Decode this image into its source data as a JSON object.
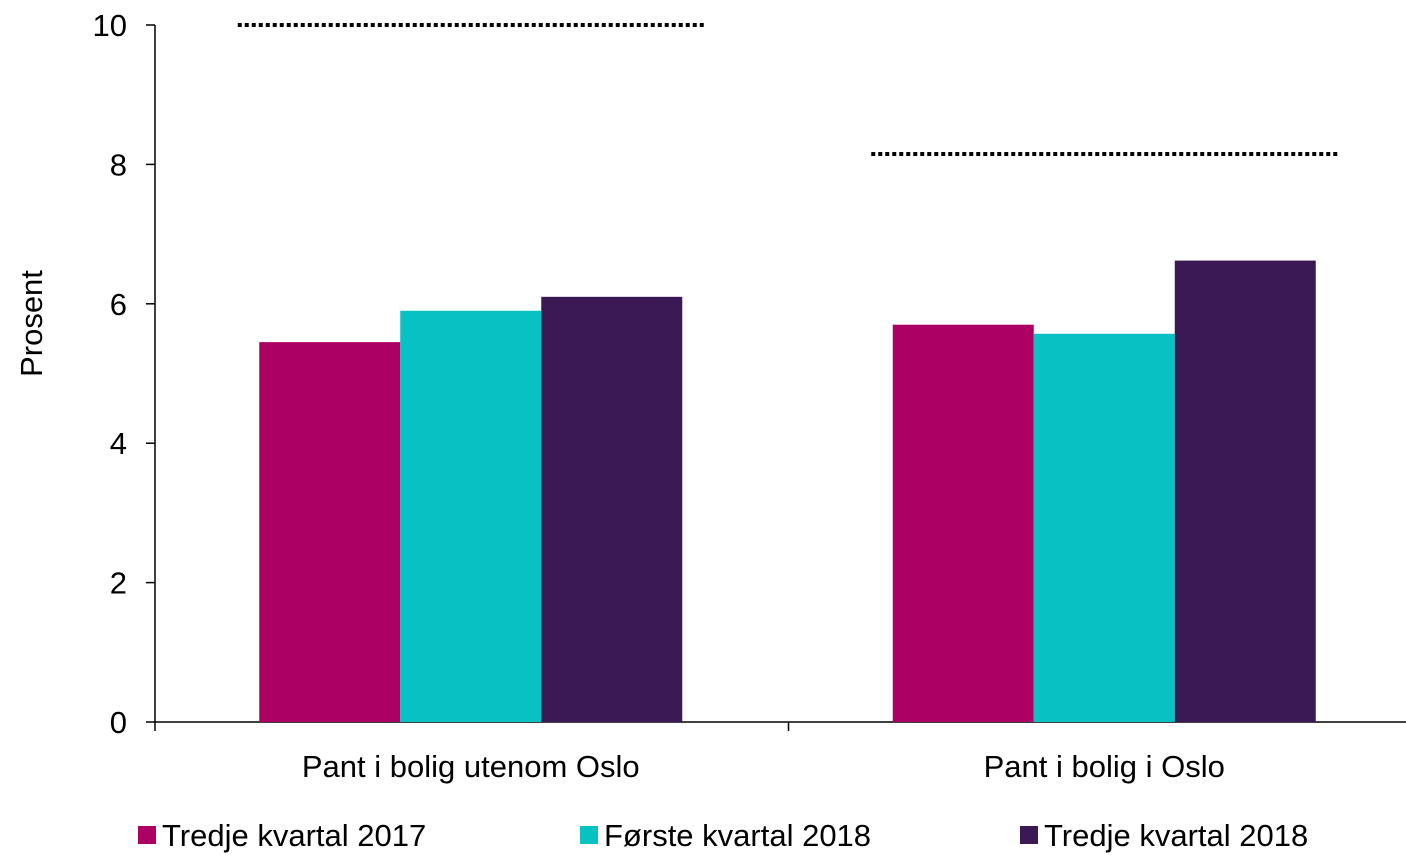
{
  "chart_data": {
    "type": "bar",
    "title": "",
    "xlabel": "",
    "ylabel": "Prosent",
    "ylim": [
      0,
      10
    ],
    "yticks": [
      0,
      2,
      4,
      6,
      8,
      10
    ],
    "grid": false,
    "legend_position": "bottom",
    "categories": [
      "Pant i bolig utenom Oslo",
      "Pant i bolig i Oslo"
    ],
    "series": [
      {
        "name": "Tredje kvartal 2017",
        "color": "#AD0065",
        "values": [
          5.45,
          5.7
        ]
      },
      {
        "name": "Første kvartal 2018",
        "color": "#08C1C2",
        "values": [
          5.9,
          5.57
        ]
      },
      {
        "name": "Tredje kvartal 2018",
        "color": "#3A1955",
        "values": [
          6.1,
          6.62
        ]
      }
    ],
    "reference_lines": [
      {
        "category_index": 0,
        "value": 10,
        "style": "dotted",
        "color": "#000000"
      },
      {
        "category_index": 1,
        "value": 8.15,
        "style": "dotted",
        "color": "#000000"
      }
    ]
  }
}
